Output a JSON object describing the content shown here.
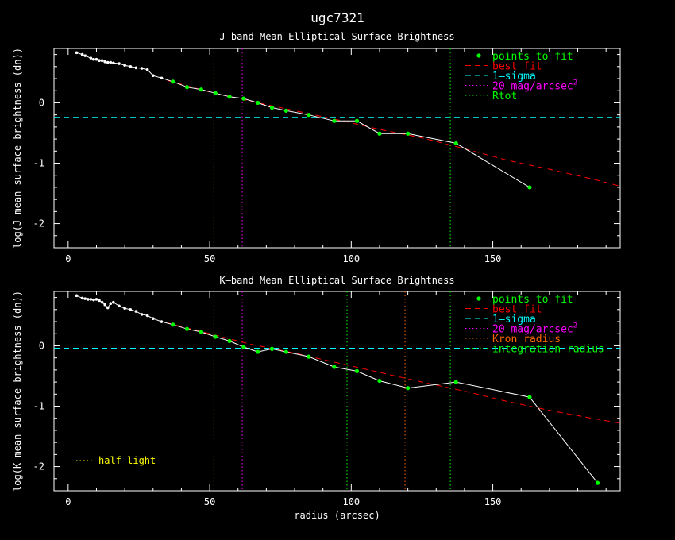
{
  "figure_title": "ugc7321",
  "colors": {
    "background": "#000000",
    "axes": "#ffffff",
    "data": "#ffffff",
    "fit_points": "#00ff00",
    "best_fit": "#ff0000",
    "sigma": "#00ffff",
    "mag20": "#ff00ff",
    "rtot": "#00ff00",
    "kron": "#ff6600",
    "integration": "#00ff00",
    "half_light": "#ffff00"
  },
  "chart_data": [
    {
      "type": "line",
      "title": "J–band Mean Elliptical Surface Brightness",
      "xlabel": "",
      "ylabel": "log(J mean surface brightness (dn))",
      "xlim": [
        -5,
        195
      ],
      "ylim": [
        -2.4,
        0.9
      ],
      "xticks": [
        0,
        50,
        100,
        150
      ],
      "yticks": [
        -2,
        -1,
        0
      ],
      "legend": [
        "points to fit",
        "best fit",
        "1–sigma",
        "20 mag/arcsec",
        "Rtot"
      ],
      "legend_exponent": "2",
      "legend_position": "top-right",
      "profile": {
        "x": [
          3,
          5,
          6,
          8,
          9,
          10,
          11,
          12,
          13,
          14,
          15,
          16,
          18,
          20,
          22,
          24,
          26,
          28,
          30,
          33,
          37,
          42,
          47,
          52,
          57,
          62,
          67,
          72,
          77,
          85,
          94,
          102,
          110,
          120,
          137,
          163
        ],
        "y": [
          0.83,
          0.8,
          0.78,
          0.74,
          0.72,
          0.72,
          0.7,
          0.7,
          0.68,
          0.67,
          0.67,
          0.66,
          0.65,
          0.62,
          0.6,
          0.58,
          0.57,
          0.55,
          0.45,
          0.41,
          0.35,
          0.26,
          0.22,
          0.16,
          0.1,
          0.07,
          0.0,
          -0.08,
          -0.13,
          -0.2,
          -0.3,
          -0.3,
          -0.51,
          -0.51,
          -0.67,
          -1.4
        ]
      },
      "fit_points": {
        "x": [
          37,
          42,
          47,
          52,
          57,
          62,
          67,
          72,
          77,
          85,
          94,
          102,
          110,
          120,
          137,
          163
        ],
        "y": [
          0.35,
          0.26,
          0.22,
          0.16,
          0.1,
          0.07,
          0.0,
          -0.08,
          -0.13,
          -0.2,
          -0.3,
          -0.3,
          -0.51,
          -0.51,
          -0.67,
          -1.4
        ]
      },
      "best_fit": {
        "x": [
          35,
          50,
          65,
          80,
          95,
          110,
          125,
          140,
          155,
          170,
          185,
          195
        ],
        "y": [
          0.37,
          0.18,
          0.02,
          -0.13,
          -0.28,
          -0.44,
          -0.58,
          -0.76,
          -0.95,
          -1.1,
          -1.26,
          -1.38
        ]
      },
      "sigma_level": -0.24,
      "vlines": [
        {
          "x": 51.5,
          "kind": "half_light"
        },
        {
          "x": 61.5,
          "kind": "mag20"
        },
        {
          "x": 135,
          "kind": "rtot"
        }
      ]
    },
    {
      "type": "line",
      "title": "K–band Mean Elliptical Surface Brightness",
      "xlabel": "radius (arcsec)",
      "ylabel": "log(K mean surface brightness (dn))",
      "xlim": [
        -5,
        195
      ],
      "ylim": [
        -2.4,
        0.9
      ],
      "xticks": [
        0,
        50,
        100,
        150
      ],
      "yticks": [
        -2,
        -1,
        0
      ],
      "legend": [
        "points to fit",
        "best fit",
        "1–sigma",
        "20 mag/arcsec",
        "Kron radius",
        "integration radius"
      ],
      "legend_exponent": "2",
      "legend_position": "top-right",
      "half_light_label": "half–light",
      "profile": {
        "x": [
          3,
          5,
          6,
          7,
          8,
          9,
          10,
          11,
          12,
          13,
          14,
          15,
          16,
          18,
          20,
          22,
          24,
          26,
          28,
          30,
          33,
          37,
          42,
          47,
          52,
          57,
          62,
          67,
          72,
          77,
          85,
          94,
          102,
          110,
          120,
          137,
          163,
          187
        ],
        "y": [
          0.83,
          0.79,
          0.78,
          0.77,
          0.77,
          0.76,
          0.77,
          0.75,
          0.72,
          0.68,
          0.63,
          0.7,
          0.72,
          0.66,
          0.62,
          0.6,
          0.57,
          0.52,
          0.5,
          0.45,
          0.4,
          0.35,
          0.28,
          0.23,
          0.15,
          0.08,
          -0.02,
          -0.1,
          -0.05,
          -0.1,
          -0.18,
          -0.35,
          -0.42,
          -0.58,
          -0.7,
          -0.6,
          -0.85,
          -2.27
        ]
      },
      "fit_points": {
        "x": [
          37,
          42,
          47,
          52,
          57,
          62,
          67,
          72,
          77,
          85,
          94,
          102,
          110,
          120,
          137,
          163,
          187
        ],
        "y": [
          0.35,
          0.28,
          0.23,
          0.15,
          0.08,
          -0.02,
          -0.1,
          -0.05,
          -0.1,
          -0.18,
          -0.35,
          -0.42,
          -0.58,
          -0.7,
          -0.6,
          -0.85,
          -2.27
        ]
      },
      "best_fit": {
        "x": [
          35,
          50,
          65,
          80,
          95,
          110,
          125,
          140,
          155,
          170,
          185,
          195
        ],
        "y": [
          0.38,
          0.2,
          0.02,
          -0.12,
          -0.28,
          -0.44,
          -0.6,
          -0.75,
          -0.92,
          -1.07,
          -1.2,
          -1.28
        ]
      },
      "sigma_level": -0.04,
      "vlines": [
        {
          "x": 51.5,
          "kind": "half_light"
        },
        {
          "x": 61.5,
          "kind": "mag20"
        },
        {
          "x": 98.5,
          "kind": "integration"
        },
        {
          "x": 119,
          "kind": "kron"
        },
        {
          "x": 135,
          "kind": "rtot"
        }
      ]
    }
  ]
}
